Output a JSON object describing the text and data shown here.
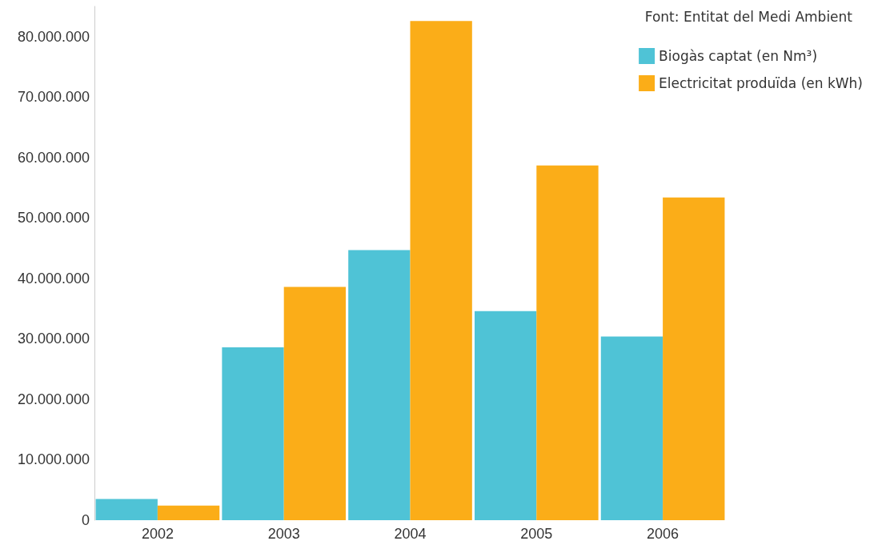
{
  "chart_data": {
    "type": "bar",
    "annotations": [
      "Font: Entitat del Medi Ambient"
    ],
    "categories": [
      "2002",
      "2003",
      "2004",
      "2005",
      "2006"
    ],
    "series": [
      {
        "name": "Biogàs captat (en Nm³)",
        "color": "#4fc3d6",
        "values": [
          3500000,
          28600000,
          44700000,
          34600000,
          30400000
        ]
      },
      {
        "name": "Electricitat produïda (en kWh)",
        "color": "#fbad18",
        "values": [
          2400000,
          38600000,
          82600000,
          58700000,
          53400000
        ]
      }
    ],
    "ylim": [
      0,
      85000000
    ],
    "yticks": [
      0,
      {
        "value": 10000000,
        "label": "10.000.000"
      },
      {
        "value": 20000000,
        "label": "20.000.000"
      },
      {
        "value": 30000000,
        "label": "30.000.000"
      },
      {
        "value": 40000000,
        "label": "40.000.000"
      },
      {
        "value": 50000000,
        "label": "50.000.000"
      },
      {
        "value": 60000000,
        "label": "60.000.000"
      },
      {
        "value": 70000000,
        "label": "70.000.000"
      },
      {
        "value": 80000000,
        "label": "80.000.000"
      }
    ],
    "grid": false,
    "legend": "top right"
  }
}
